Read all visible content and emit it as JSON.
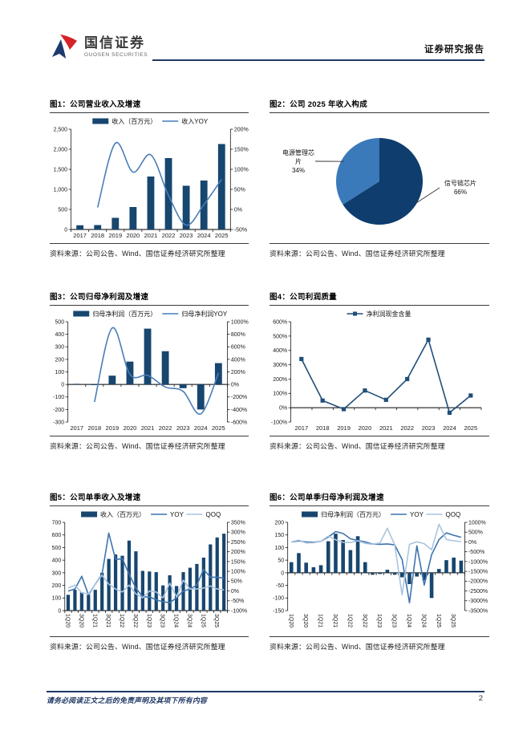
{
  "header": {
    "brand_cn": "国信证券",
    "brand_en": "GUOSEN SECURITIES",
    "report_type": "证券研究报告"
  },
  "footer": {
    "disclaimer": "请务必阅读正文之后的免责声明及其项下所有内容",
    "page_number": "2"
  },
  "source_note": "资料来源：公司公告、Wind、国信证券经济研究所整理",
  "palette": {
    "bar_navy": "#17466F",
    "line_blue": "#4A7DB8",
    "line_light": "#A9C4DF",
    "pie_dark": "#0E3D6E",
    "pie_light": "#3A79BA",
    "accent_navy": "#1F3864",
    "brand_red": "#D8222A",
    "brand_blue": "#1E3A6E",
    "axis": "#1a1a1a"
  },
  "chart_data": [
    {
      "type": "bar-line",
      "title": "图1：公司营业收入及增速",
      "categories": [
        "2017",
        "2018",
        "2019",
        "2020",
        "2021",
        "2022",
        "2023",
        "2024",
        "2025"
      ],
      "series": [
        {
          "name": "收入（百万元）",
          "type": "bar",
          "axis": "left",
          "color": "#17466F",
          "values": [
            105,
            110,
            290,
            560,
            1320,
            1780,
            1090,
            1220,
            2130
          ]
        },
        {
          "name": "收入YOY",
          "type": "line",
          "axis": "right",
          "color": "#4A7DB8",
          "smooth": true,
          "values": [
            null,
            5,
            165,
            93,
            136,
            35,
            -39,
            12,
            75
          ]
        }
      ],
      "left_axis": {
        "min": 0,
        "max": 2500,
        "step": 500,
        "format": "thousands"
      },
      "right_axis": {
        "min": -50,
        "max": 200,
        "step": 50,
        "format": "percent"
      },
      "label_every": 1
    },
    {
      "type": "pie",
      "title": "图2：公司 2025 年收入构成",
      "slices": [
        {
          "label": "信号链芯片",
          "value": 66,
          "pct_label": "66%",
          "color": "#0E3D6E"
        },
        {
          "label": "电源管理芯片",
          "value": 34,
          "pct_label": "34%",
          "color": "#3A79BA"
        }
      ],
      "left_label_lines": [
        "电源管理芯",
        "片",
        "34%"
      ],
      "right_label_lines": [
        "信号链芯片",
        "66%"
      ]
    },
    {
      "type": "bar-line",
      "title": "图3：公司归母净利润及增速",
      "categories": [
        "2017",
        "2018",
        "2019",
        "2020",
        "2021",
        "2022",
        "2023",
        "2024",
        "2025"
      ],
      "series": [
        {
          "name": "归母净利润（百万元）",
          "type": "bar",
          "axis": "left",
          "color": "#17466F",
          "values": [
            5,
            -3,
            70,
            182,
            445,
            265,
            -30,
            -200,
            170
          ]
        },
        {
          "name": "归母净利润YOY",
          "type": "line",
          "axis": "right",
          "color": "#4A7DB8",
          "smooth": true,
          "values": [
            null,
            -280,
            900,
            160,
            145,
            -40,
            -110,
            -470,
            185
          ]
        }
      ],
      "left_axis": {
        "min": -300,
        "max": 500,
        "step": 100,
        "format": "number"
      },
      "right_axis": {
        "min": -600,
        "max": 1000,
        "step": 200,
        "format": "percent"
      },
      "label_every": 1
    },
    {
      "type": "bar-line",
      "title": "图4：公司利润质量",
      "categories": [
        "2017",
        "2018",
        "2019",
        "2020",
        "2021",
        "2022",
        "2023",
        "2024",
        "2025"
      ],
      "series": [
        {
          "name": "净利润现金含量",
          "type": "line",
          "axis": "left",
          "color": "#1F4E79",
          "marker": "square",
          "values": [
            340,
            50,
            -10,
            120,
            55,
            200,
            475,
            -35,
            85
          ]
        }
      ],
      "left_axis": {
        "min": -100,
        "max": 600,
        "step": 100,
        "format": "percent"
      },
      "label_every": 1
    },
    {
      "type": "bar-line",
      "title": "图5：公司单季收入及增速",
      "categories": [
        "1Q20",
        "2Q20",
        "3Q20",
        "4Q20",
        "1Q21",
        "2Q21",
        "3Q21",
        "4Q21",
        "1Q22",
        "2Q22",
        "3Q22",
        "4Q22",
        "1Q23",
        "2Q23",
        "3Q23",
        "4Q23",
        "1Q24",
        "2Q24",
        "3Q24",
        "4Q24",
        "1Q25",
        "2Q25",
        "3Q25",
        "4Q25"
      ],
      "series": [
        {
          "name": "收入（百万元）",
          "type": "bar",
          "axis": "left",
          "color": "#17466F",
          "values": [
            125,
            165,
            145,
            125,
            165,
            300,
            410,
            445,
            435,
            555,
            470,
            315,
            310,
            305,
            200,
            280,
            195,
            305,
            340,
            370,
            420,
            525,
            580,
            610
          ]
        },
        {
          "name": "YOY",
          "type": "line",
          "axis": "right",
          "color": "#3C74B0",
          "values": [
            0,
            10,
            75,
            -20,
            35,
            85,
            295,
            160,
            165,
            85,
            15,
            -30,
            -30,
            -45,
            -55,
            -60,
            -35,
            0,
            10,
            30,
            110,
            70,
            70,
            65
          ]
        },
        {
          "name": "QOQ",
          "type": "line",
          "axis": "right",
          "color": "#A9C4DF",
          "values": [
            15,
            30,
            -10,
            -15,
            35,
            80,
            35,
            10,
            -5,
            30,
            -15,
            -35,
            0,
            -5,
            -35,
            40,
            -30,
            55,
            10,
            10,
            15,
            25,
            10,
            5
          ]
        }
      ],
      "left_axis": {
        "min": 0,
        "max": 700,
        "step": 100,
        "format": "number"
      },
      "right_axis": {
        "min": -100,
        "max": 350,
        "step": 50,
        "format": "percent"
      },
      "label_every": 2,
      "rotate_x": true
    },
    {
      "type": "bar-line",
      "title": "图6：公司单季归母净利润及增速",
      "categories": [
        "1Q20",
        "2Q20",
        "3Q20",
        "4Q20",
        "1Q21",
        "2Q21",
        "3Q21",
        "4Q21",
        "1Q22",
        "2Q22",
        "3Q22",
        "4Q22",
        "1Q23",
        "2Q23",
        "3Q23",
        "4Q23",
        "1Q24",
        "2Q24",
        "3Q24",
        "4Q24",
        "1Q25",
        "2Q25",
        "3Q25",
        "4Q25"
      ],
      "series": [
        {
          "name": "归母净利润（百万元）",
          "type": "bar",
          "axis": "left",
          "color": "#17466F",
          "values": [
            42,
            78,
            40,
            22,
            30,
            125,
            155,
            130,
            90,
            145,
            42,
            -8,
            -5,
            12,
            -8,
            -18,
            -45,
            -15,
            -30,
            -100,
            15,
            50,
            60,
            48
          ]
        },
        {
          "name": "YOY",
          "type": "line",
          "axis": "right",
          "color": "#3C74B0",
          "values": [
            0,
            50,
            0,
            -20,
            30,
            250,
            530,
            430,
            160,
            70,
            0,
            -110,
            -120,
            -100,
            -150,
            -900,
            -3100,
            -200,
            -2200,
            -650,
            120,
            460,
            340,
            240
          ]
        },
        {
          "name": "QOQ",
          "type": "line",
          "axis": "right",
          "color": "#A9C4DF",
          "values": [
            0,
            90,
            -50,
            -45,
            35,
            300,
            110,
            -20,
            -30,
            60,
            -70,
            -120,
            -50,
            700,
            -150,
            -2700,
            -120,
            10,
            -90,
            -400,
            900,
            120,
            60,
            20
          ]
        }
      ],
      "left_axis": {
        "min": -150,
        "max": 200,
        "step": 50,
        "format": "number"
      },
      "right_axis": {
        "min": -3500,
        "max": 1000,
        "step": 500,
        "format": "percent"
      },
      "label_every": 2,
      "rotate_x": true
    }
  ],
  "figures": [
    {
      "name": "annual-revenue-growth"
    },
    {
      "name": "revenue-mix-2025"
    },
    {
      "name": "annual-net-profit-growth"
    },
    {
      "name": "profit-quality"
    },
    {
      "name": "quarterly-revenue-growth"
    },
    {
      "name": "quarterly-net-profit-growth"
    }
  ]
}
